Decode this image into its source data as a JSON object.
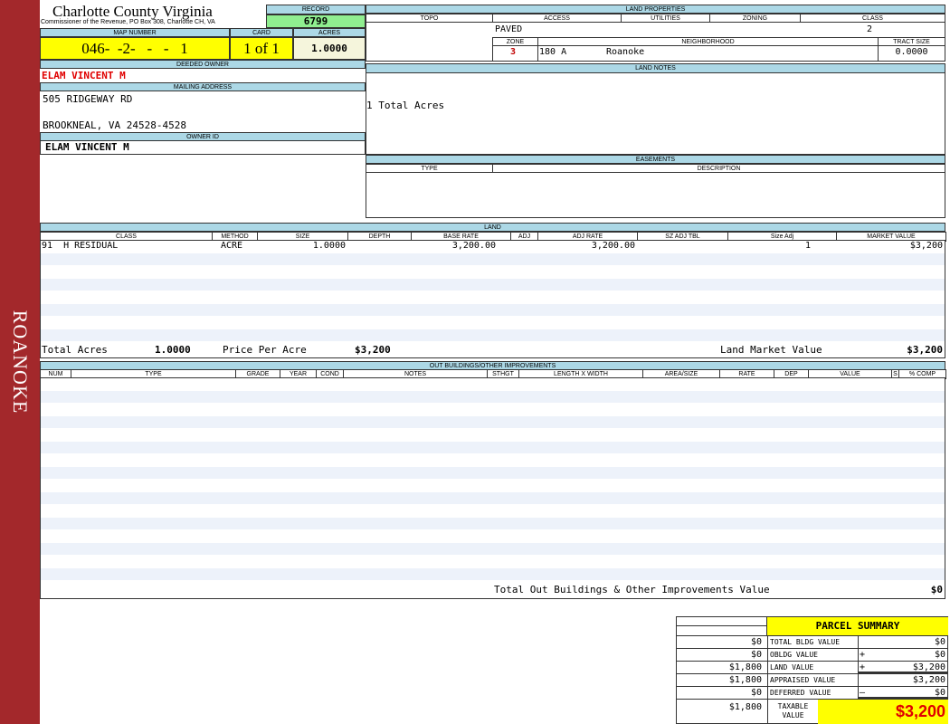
{
  "sidebar": {
    "label": "ROANOKE",
    "color": "#a3282b"
  },
  "header": {
    "county": "Charlotte County Virginia",
    "subtitle": "Commissioner of the Revenue, PO Box 308, Charlotte CH, VA",
    "record_label": "RECORD",
    "record": "6799",
    "map_number_label": "MAP NUMBER",
    "map_number": "046-  -2-   -   -   1",
    "card_label": "CARD",
    "card": "1 of 1",
    "acres_label": "ACRES",
    "acres": "1.0000"
  },
  "owner": {
    "deeded_label": "DEEDED OWNER",
    "deeded": "ELAM VINCENT M",
    "mailing_label": "MAILING ADDRESS",
    "address1": "505 RIDGEWAY RD",
    "address2": "BROOKNEAL, VA 24528-4528",
    "owner_id_label": "OWNER ID",
    "owner_id": "ELAM VINCENT M"
  },
  "land_properties": {
    "title": "LAND PROPERTIES",
    "columns": [
      "TOPO",
      "ACCESS",
      "UTILITIES",
      "ZONING",
      "CLASS"
    ],
    "access": "PAVED",
    "class": "2",
    "zone_label": "ZONE",
    "neighborhood_label": "NEIGHBORHOOD",
    "tract_label": "TRACT SIZE",
    "zone": "3",
    "neighborhood_code": "180 A",
    "neighborhood": "Roanoke",
    "tract_size": "0.0000"
  },
  "land_notes": {
    "title": "LAND NOTES",
    "text": "1 Total Acres"
  },
  "easements": {
    "title": "EASEMENTS",
    "columns": [
      "TYPE",
      "DESCRIPTION"
    ]
  },
  "land": {
    "title": "LAND",
    "columns": [
      "CLASS",
      "METHOD",
      "SIZE",
      "DEPTH",
      "BASE RATE",
      "ADJ",
      "ADJ RATE",
      "SZ ADJ TBL",
      "Size Adj",
      "MARKET VALUE"
    ],
    "rows": [
      [
        "91  H RESIDUAL",
        "ACRE",
        "1.0000",
        "",
        "3,200.00",
        "",
        "3,200.00",
        "",
        "1",
        "$3,200"
      ]
    ],
    "total_acres_label": "Total Acres",
    "total_acres": "1.0000",
    "ppa_label": "Price Per Acre",
    "ppa": "$3,200",
    "market_label": "Land Market Value",
    "market": "$3,200"
  },
  "outbuildings": {
    "title": "OUT BUILDINGS/OTHER IMPROVEMENTS",
    "columns": [
      "NUM",
      "TYPE",
      "GRADE",
      "YEAR",
      "COND",
      "NOTES",
      "STHGT",
      "LENGTH X WIDTH",
      "AREA/SIZE",
      "RATE",
      "DEP",
      "VALUE",
      "S",
      "% COMP"
    ],
    "total_label": "Total Out Buildings & Other Improvements Value",
    "total": "$0"
  },
  "summary": {
    "title": "PARCEL SUMMARY",
    "rows": [
      {
        "prior": "$0",
        "label": "TOTAL BLDG VALUE",
        "op": "",
        "value": "$0"
      },
      {
        "prior": "$0",
        "label": "OBLDG VALUE",
        "op": "+",
        "value": "$0"
      },
      {
        "prior": "$1,800",
        "label": "LAND VALUE",
        "op": "+",
        "value": "$3,200"
      },
      {
        "prior": "$1,800",
        "label": "APPRAISED VALUE",
        "op": "",
        "value": "$3,200"
      },
      {
        "prior": "$0",
        "label": "DEFERRED VALUE",
        "op": "–",
        "value": "$0"
      }
    ],
    "taxable_prior": "$1,800",
    "taxable_label": "TAXABLE VALUE",
    "taxable": "$3,200"
  }
}
